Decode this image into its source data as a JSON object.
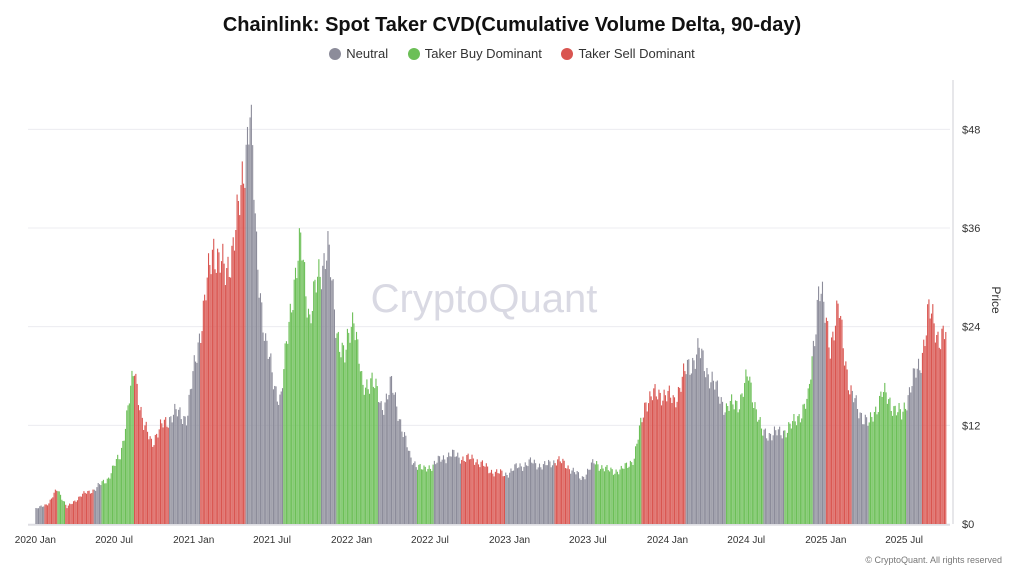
{
  "title": "Chainlink: Spot Taker CVD(Cumulative Volume Delta, 90-day)",
  "legend": [
    {
      "label": "Neutral",
      "color": "#8c8c9a"
    },
    {
      "label": "Taker Buy Dominant",
      "color": "#6cbf57"
    },
    {
      "label": "Taker Sell Dominant",
      "color": "#d95550"
    }
  ],
  "watermark": "CryptoQuant",
  "footer": "© CryptoQuant. All rights reserved",
  "chart_data": {
    "type": "bar",
    "ylabel": "Price",
    "ylim": [
      0,
      54
    ],
    "y_ticks": [
      {
        "value": 0,
        "label": "$0"
      },
      {
        "value": 12,
        "label": "$12"
      },
      {
        "value": 24,
        "label": "$24"
      },
      {
        "value": 36,
        "label": "$36"
      },
      {
        "value": 48,
        "label": "$48"
      }
    ],
    "x_ticks": [
      {
        "date": "2020-01-01",
        "label": "2020 Jan"
      },
      {
        "date": "2020-07-01",
        "label": "2020 Jul"
      },
      {
        "date": "2021-01-01",
        "label": "2021 Jan"
      },
      {
        "date": "2021-07-01",
        "label": "2021 Jul"
      },
      {
        "date": "2022-01-01",
        "label": "2022 Jan"
      },
      {
        "date": "2022-07-01",
        "label": "2022 Jul"
      },
      {
        "date": "2023-01-01",
        "label": "2023 Jan"
      },
      {
        "date": "2023-07-01",
        "label": "2023 Jul"
      },
      {
        "date": "2024-01-01",
        "label": "2024 Jan"
      },
      {
        "date": "2024-07-01",
        "label": "2024 Jul"
      },
      {
        "date": "2025-01-01",
        "label": "2025 Jan"
      },
      {
        "date": "2025-07-01",
        "label": "2025 Jul"
      }
    ],
    "xlim": [
      "2019-12-15",
      "2025-10-15"
    ],
    "price_series": [
      [
        "2020-01-01",
        1.8
      ],
      [
        "2020-02-01",
        2.6
      ],
      [
        "2020-02-20",
        4.3
      ],
      [
        "2020-03-13",
        2.0
      ],
      [
        "2020-04-15",
        3.5
      ],
      [
        "2020-05-15",
        4.2
      ],
      [
        "2020-06-15",
        5.5
      ],
      [
        "2020-07-15",
        8.5
      ],
      [
        "2020-08-16",
        19.0
      ],
      [
        "2020-09-05",
        12.0
      ],
      [
        "2020-09-25",
        10.0
      ],
      [
        "2020-10-20",
        12.0
      ],
      [
        "2020-11-15",
        13.5
      ],
      [
        "2020-12-15",
        13.0
      ],
      [
        "2021-01-10",
        22.0
      ],
      [
        "2021-02-15",
        34.0
      ],
      [
        "2021-03-15",
        30.0
      ],
      [
        "2021-04-15",
        38.0
      ],
      [
        "2021-05-10",
        51.0
      ],
      [
        "2021-05-25",
        33.0
      ],
      [
        "2021-06-15",
        22.0
      ],
      [
        "2021-07-05",
        17.0
      ],
      [
        "2021-07-20",
        15.0
      ],
      [
        "2021-08-15",
        28.0
      ],
      [
        "2021-09-05",
        34.0
      ],
      [
        "2021-09-25",
        25.0
      ],
      [
        "2021-10-15",
        30.0
      ],
      [
        "2021-11-05",
        34.0
      ],
      [
        "2021-11-25",
        24.0
      ],
      [
        "2021-12-15",
        20.0
      ],
      [
        "2022-01-05",
        26.0
      ],
      [
        "2022-01-25",
        16.0
      ],
      [
        "2022-02-15",
        18.0
      ],
      [
        "2022-03-10",
        14.0
      ],
      [
        "2022-04-01",
        17.0
      ],
      [
        "2022-05-15",
        8.0
      ],
      [
        "2022-06-15",
        6.5
      ],
      [
        "2022-07-15",
        7.5
      ],
      [
        "2022-08-15",
        8.5
      ],
      [
        "2022-09-15",
        8.0
      ],
      [
        "2022-10-15",
        7.8
      ],
      [
        "2022-11-15",
        6.5
      ],
      [
        "2022-12-20",
        6.0
      ],
      [
        "2023-01-20",
        7.0
      ],
      [
        "2023-02-20",
        7.5
      ],
      [
        "2023-03-20",
        7.0
      ],
      [
        "2023-04-20",
        7.8
      ],
      [
        "2023-05-20",
        6.8
      ],
      [
        "2023-06-15",
        5.5
      ],
      [
        "2023-07-15",
        7.5
      ],
      [
        "2023-08-15",
        6.5
      ],
      [
        "2023-09-15",
        6.5
      ],
      [
        "2023-10-15",
        8.0
      ],
      [
        "2023-11-10",
        15.0
      ],
      [
        "2023-12-15",
        16.0
      ],
      [
        "2024-01-15",
        15.0
      ],
      [
        "2024-02-15",
        19.0
      ],
      [
        "2024-03-12",
        21.0
      ],
      [
        "2024-04-15",
        17.0
      ],
      [
        "2024-05-15",
        14.0
      ],
      [
        "2024-06-15",
        15.0
      ],
      [
        "2024-07-05",
        18.0
      ],
      [
        "2024-08-05",
        11.0
      ],
      [
        "2024-09-15",
        11.0
      ],
      [
        "2024-10-15",
        12.0
      ],
      [
        "2024-11-20",
        15.0
      ],
      [
        "2024-12-15",
        29.0
      ],
      [
        "2025-01-10",
        22.0
      ],
      [
        "2025-01-30",
        26.0
      ],
      [
        "2025-02-25",
        16.0
      ],
      [
        "2025-03-15",
        14.0
      ],
      [
        "2025-04-10",
        12.0
      ],
      [
        "2025-05-10",
        16.0
      ],
      [
        "2025-06-10",
        14.0
      ],
      [
        "2025-06-25",
        13.0
      ],
      [
        "2025-07-15",
        17.0
      ],
      [
        "2025-08-05",
        19.0
      ],
      [
        "2025-08-25",
        26.0
      ],
      [
        "2025-09-15",
        23.0
      ],
      [
        "2025-10-05",
        23.0
      ]
    ],
    "regimes": [
      {
        "from": "2020-01-01",
        "to": "2020-01-20",
        "state": "Neutral"
      },
      {
        "from": "2020-01-20",
        "to": "2020-02-20",
        "state": "Taker Sell Dominant"
      },
      {
        "from": "2020-02-20",
        "to": "2020-03-10",
        "state": "Taker Buy Dominant"
      },
      {
        "from": "2020-03-10",
        "to": "2020-05-15",
        "state": "Taker Sell Dominant"
      },
      {
        "from": "2020-05-15",
        "to": "2020-06-01",
        "state": "Neutral"
      },
      {
        "from": "2020-06-01",
        "to": "2020-08-15",
        "state": "Taker Buy Dominant"
      },
      {
        "from": "2020-08-15",
        "to": "2020-11-05",
        "state": "Taker Sell Dominant"
      },
      {
        "from": "2020-11-05",
        "to": "2021-01-15",
        "state": "Neutral"
      },
      {
        "from": "2021-01-15",
        "to": "2021-05-01",
        "state": "Taker Sell Dominant"
      },
      {
        "from": "2021-05-01",
        "to": "2021-07-25",
        "state": "Neutral"
      },
      {
        "from": "2021-07-25",
        "to": "2021-10-20",
        "state": "Taker Buy Dominant"
      },
      {
        "from": "2021-10-20",
        "to": "2021-11-25",
        "state": "Neutral"
      },
      {
        "from": "2021-11-25",
        "to": "2022-03-01",
        "state": "Taker Buy Dominant"
      },
      {
        "from": "2022-03-01",
        "to": "2022-06-01",
        "state": "Neutral"
      },
      {
        "from": "2022-06-01",
        "to": "2022-07-10",
        "state": "Taker Buy Dominant"
      },
      {
        "from": "2022-07-10",
        "to": "2022-09-10",
        "state": "Neutral"
      },
      {
        "from": "2022-09-10",
        "to": "2022-12-20",
        "state": "Taker Sell Dominant"
      },
      {
        "from": "2022-12-20",
        "to": "2023-04-15",
        "state": "Neutral"
      },
      {
        "from": "2023-04-15",
        "to": "2023-05-20",
        "state": "Taker Sell Dominant"
      },
      {
        "from": "2023-05-20",
        "to": "2023-07-15",
        "state": "Neutral"
      },
      {
        "from": "2023-07-15",
        "to": "2023-11-01",
        "state": "Taker Buy Dominant"
      },
      {
        "from": "2023-11-01",
        "to": "2024-02-10",
        "state": "Taker Sell Dominant"
      },
      {
        "from": "2024-02-10",
        "to": "2024-05-15",
        "state": "Neutral"
      },
      {
        "from": "2024-05-15",
        "to": "2024-08-10",
        "state": "Taker Buy Dominant"
      },
      {
        "from": "2024-08-10",
        "to": "2024-09-25",
        "state": "Neutral"
      },
      {
        "from": "2024-09-25",
        "to": "2024-12-01",
        "state": "Taker Buy Dominant"
      },
      {
        "from": "2024-12-01",
        "to": "2025-01-01",
        "state": "Neutral"
      },
      {
        "from": "2025-01-01",
        "to": "2025-03-01",
        "state": "Taker Sell Dominant"
      },
      {
        "from": "2025-03-01",
        "to": "2025-04-10",
        "state": "Neutral"
      },
      {
        "from": "2025-04-10",
        "to": "2025-07-05",
        "state": "Taker Buy Dominant"
      },
      {
        "from": "2025-07-05",
        "to": "2025-08-10",
        "state": "Neutral"
      },
      {
        "from": "2025-08-10",
        "to": "2025-10-05",
        "state": "Taker Sell Dominant"
      }
    ]
  }
}
